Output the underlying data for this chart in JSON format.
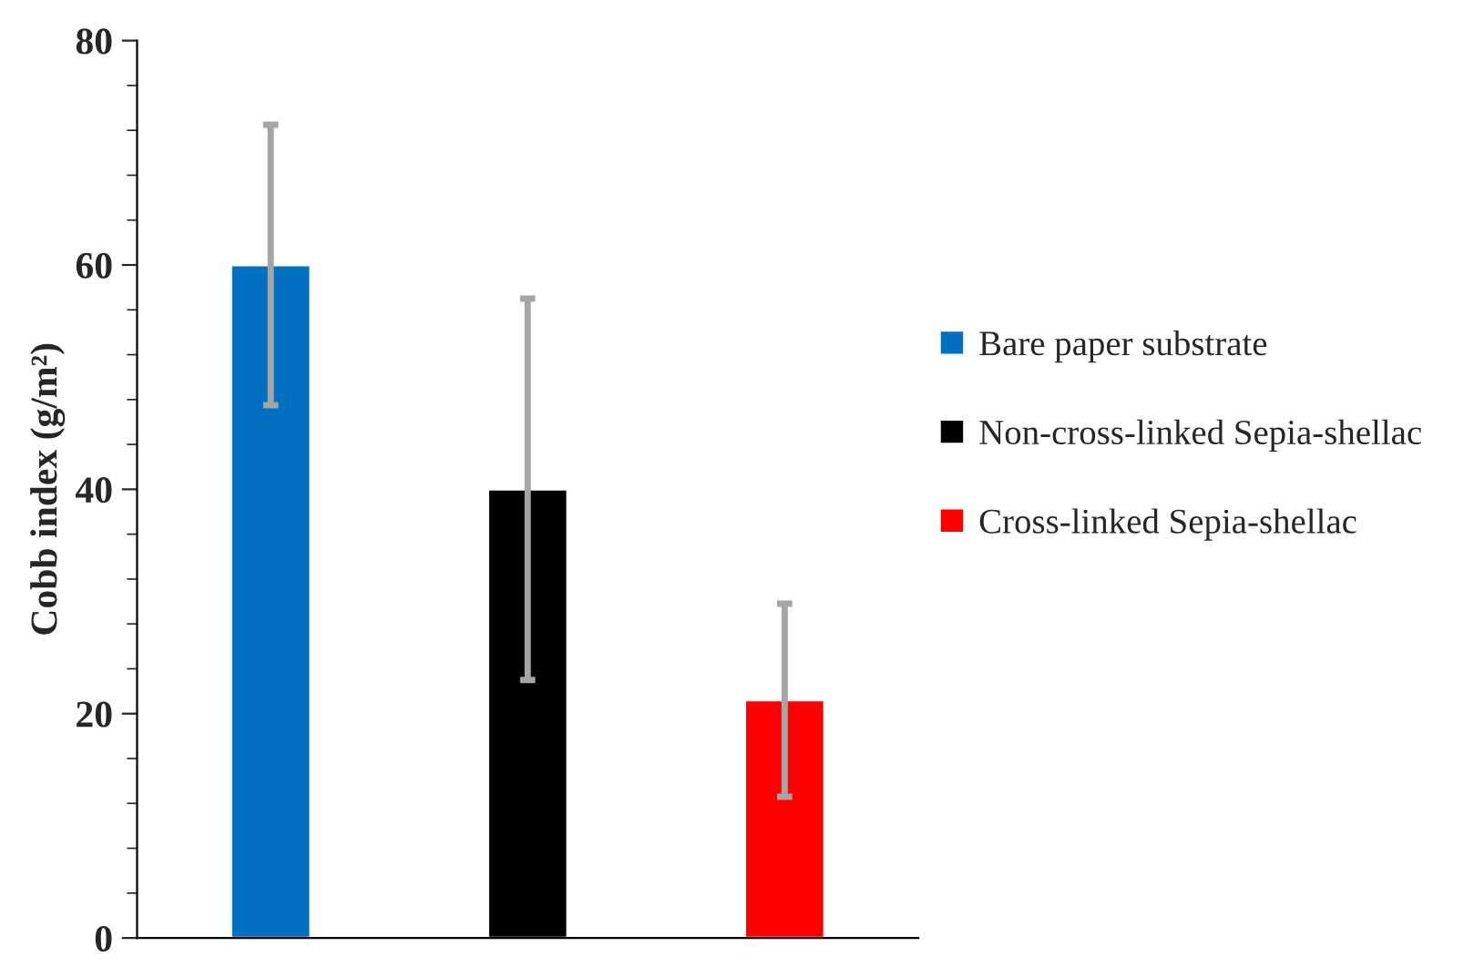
{
  "chart_data": {
    "type": "bar",
    "ylabel": "Cobb index (g/m²)",
    "categories": [
      null,
      null,
      null
    ],
    "series": [
      {
        "name": "Bare paper substrate",
        "color": "#0070c0",
        "values": [
          60,
          null,
          null
        ],
        "errors": [
          12.5,
          null,
          null
        ]
      },
      {
        "name": "Non-cross-linked Sepia-shellac",
        "color": "#000000",
        "values": [
          null,
          40,
          null
        ],
        "errors": [
          null,
          17,
          null
        ]
      },
      {
        "name": "Cross-linked Sepia-shellac",
        "color": "#ff0000",
        "values": [
          null,
          null,
          21.2
        ],
        "errors": [
          null,
          null,
          8.6
        ]
      }
    ],
    "ylim": [
      0,
      80
    ],
    "yticks": [
      0,
      20,
      40,
      60,
      80
    ],
    "grid": false,
    "legend": "right"
  }
}
